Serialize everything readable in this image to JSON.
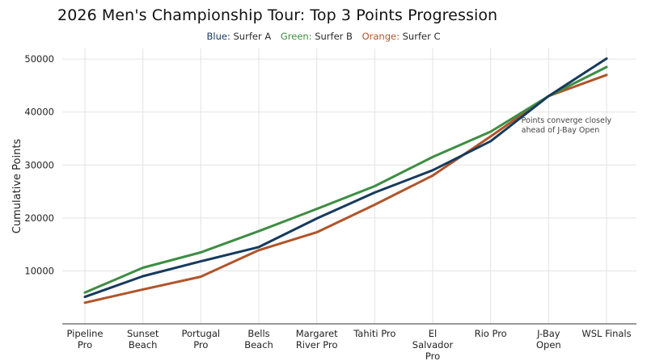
{
  "chart_data": {
    "type": "line",
    "title": "2026 Men's Championship Tour: Top 3 Points Progression",
    "ylabel": "Cumulative Points",
    "xlabel": "",
    "categories": [
      "Pipeline Pro",
      "Sunset Beach",
      "Portugal Pro",
      "Bells Beach",
      "Margaret River Pro",
      "Tahiti Pro",
      "El Salvador Pro",
      "Rio Pro",
      "J-Bay Open",
      "WSL Finals"
    ],
    "ylim": [
      0,
      52000
    ],
    "yticks": [
      "10000",
      "20000",
      "30000",
      "40000",
      "50000"
    ],
    "grid": true,
    "legend": [
      {
        "color_word": "Blue",
        "label": "Surfer A",
        "color": "#163a5c"
      },
      {
        "color_word": "Green",
        "label": "Surfer B",
        "color": "#3e8d44"
      },
      {
        "color_word": "Orange",
        "label": "Surfer C",
        "color": "#b0542a"
      }
    ],
    "series": [
      {
        "name": "Surfer A",
        "color": "#163a5c",
        "values": [
          5100,
          9000,
          11800,
          14500,
          19900,
          24800,
          29000,
          34500,
          43000,
          50100
        ]
      },
      {
        "name": "Surfer B",
        "color": "#3e8d44",
        "values": [
          5900,
          10600,
          13500,
          17500,
          21700,
          26000,
          31500,
          36300,
          43000,
          48500
        ]
      },
      {
        "name": "Surfer C",
        "color": "#b0542a",
        "values": [
          4000,
          6500,
          8900,
          13900,
          17300,
          22500,
          28000,
          35400,
          43000,
          47000
        ]
      }
    ],
    "annotation": {
      "lines": [
        "Points converge closely",
        "ahead of J-Bay Open"
      ],
      "x_category": "Rio Pro",
      "y": 38000
    }
  }
}
